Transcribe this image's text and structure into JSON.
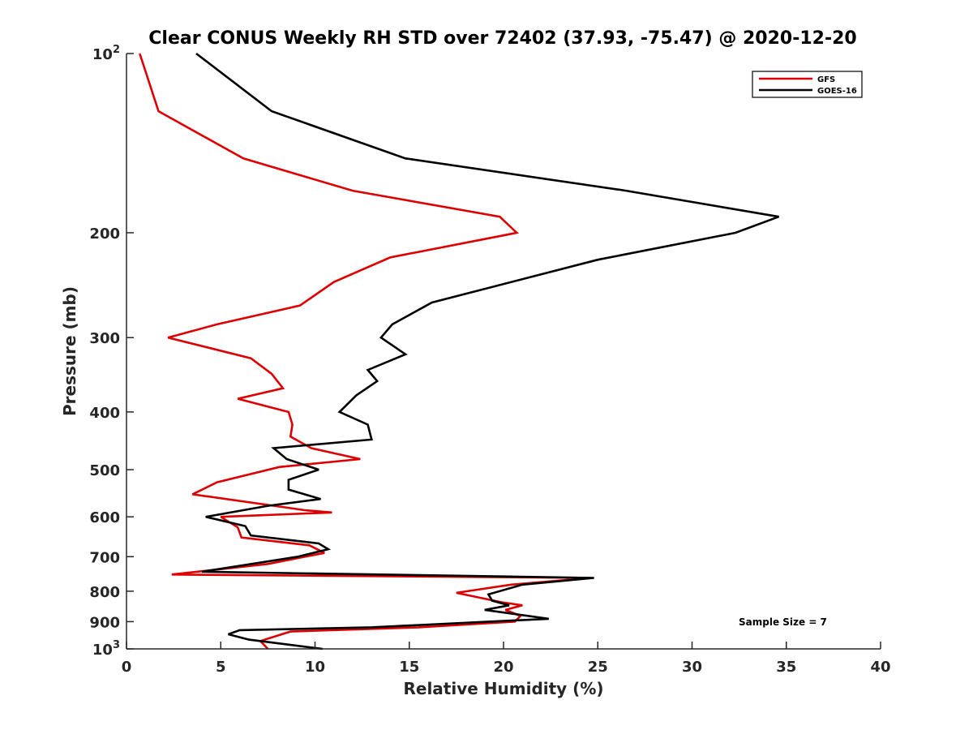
{
  "chart_data": {
    "type": "line",
    "title": "Clear CONUS Weekly RH STD over 72402 (37.93, -75.47) @ 2020-12-20",
    "xlabel": "Relative Humidity (%)",
    "ylabel": "Pressure (mb)",
    "xlim": [
      0,
      40
    ],
    "ylim": [
      100,
      1000
    ],
    "y_scale": "log",
    "y_reversed": true,
    "grid": false,
    "legend_position": "top-right",
    "x_ticks": [
      {
        "value": 0,
        "label": "0"
      },
      {
        "value": 5,
        "label": "5"
      },
      {
        "value": 10,
        "label": "10"
      },
      {
        "value": 15,
        "label": "15"
      },
      {
        "value": 20,
        "label": "20"
      },
      {
        "value": 25,
        "label": "25"
      },
      {
        "value": 30,
        "label": "30"
      },
      {
        "value": 35,
        "label": "35"
      },
      {
        "value": 40,
        "label": "40"
      }
    ],
    "y_ticks": [
      {
        "value": 100,
        "label": "10",
        "exp": "2"
      },
      {
        "value": 200,
        "label": "200"
      },
      {
        "value": 300,
        "label": "300"
      },
      {
        "value": 400,
        "label": "400"
      },
      {
        "value": 500,
        "label": "500"
      },
      {
        "value": 600,
        "label": "600"
      },
      {
        "value": 700,
        "label": "700"
      },
      {
        "value": 800,
        "label": "800"
      },
      {
        "value": 900,
        "label": "900"
      },
      {
        "value": 1000,
        "label": "10",
        "exp": "3"
      }
    ],
    "annotation": "Sample Size = 7",
    "series": [
      {
        "name": "GFS",
        "color": "#dd0000",
        "points": [
          {
            "x": 0.7,
            "y": 100
          },
          {
            "x": 1.7,
            "y": 125
          },
          {
            "x": 6.2,
            "y": 150
          },
          {
            "x": 12.0,
            "y": 170
          },
          {
            "x": 19.8,
            "y": 188
          },
          {
            "x": 20.7,
            "y": 200
          },
          {
            "x": 14.0,
            "y": 220
          },
          {
            "x": 11.0,
            "y": 242
          },
          {
            "x": 9.2,
            "y": 265
          },
          {
            "x": 4.8,
            "y": 285
          },
          {
            "x": 2.2,
            "y": 300
          },
          {
            "x": 6.6,
            "y": 325
          },
          {
            "x": 7.7,
            "y": 345
          },
          {
            "x": 8.3,
            "y": 365
          },
          {
            "x": 5.9,
            "y": 380
          },
          {
            "x": 8.6,
            "y": 400
          },
          {
            "x": 8.8,
            "y": 420
          },
          {
            "x": 8.7,
            "y": 440
          },
          {
            "x": 9.8,
            "y": 460
          },
          {
            "x": 12.4,
            "y": 480
          },
          {
            "x": 8.1,
            "y": 495
          },
          {
            "x": 4.8,
            "y": 525
          },
          {
            "x": 3.5,
            "y": 550
          },
          {
            "x": 9.5,
            "y": 585
          },
          {
            "x": 10.9,
            "y": 590
          },
          {
            "x": 5.0,
            "y": 600
          },
          {
            "x": 5.9,
            "y": 625
          },
          {
            "x": 6.1,
            "y": 650
          },
          {
            "x": 9.7,
            "y": 670
          },
          {
            "x": 10.5,
            "y": 690
          },
          {
            "x": 7.5,
            "y": 720
          },
          {
            "x": 2.4,
            "y": 750
          },
          {
            "x": 24.6,
            "y": 760
          },
          {
            "x": 20.4,
            "y": 780
          },
          {
            "x": 17.5,
            "y": 805
          },
          {
            "x": 19.9,
            "y": 835
          },
          {
            "x": 21.0,
            "y": 845
          },
          {
            "x": 20.1,
            "y": 860
          },
          {
            "x": 20.9,
            "y": 880
          },
          {
            "x": 20.6,
            "y": 900
          },
          {
            "x": 15.5,
            "y": 920
          },
          {
            "x": 8.7,
            "y": 935
          },
          {
            "x": 7.1,
            "y": 970
          },
          {
            "x": 7.5,
            "y": 1000
          }
        ]
      },
      {
        "name": "GOES-16",
        "color": "#000000",
        "points": [
          {
            "x": 3.7,
            "y": 100
          },
          {
            "x": 7.7,
            "y": 125
          },
          {
            "x": 14.8,
            "y": 150
          },
          {
            "x": 26.5,
            "y": 170
          },
          {
            "x": 34.6,
            "y": 188
          },
          {
            "x": 32.3,
            "y": 200
          },
          {
            "x": 25.0,
            "y": 222
          },
          {
            "x": 16.2,
            "y": 262
          },
          {
            "x": 14.1,
            "y": 285
          },
          {
            "x": 13.5,
            "y": 300
          },
          {
            "x": 14.8,
            "y": 320
          },
          {
            "x": 12.8,
            "y": 340
          },
          {
            "x": 13.3,
            "y": 355
          },
          {
            "x": 12.2,
            "y": 375
          },
          {
            "x": 11.3,
            "y": 400
          },
          {
            "x": 12.8,
            "y": 420
          },
          {
            "x": 13.0,
            "y": 445
          },
          {
            "x": 7.8,
            "y": 460
          },
          {
            "x": 8.5,
            "y": 480
          },
          {
            "x": 10.2,
            "y": 500
          },
          {
            "x": 8.6,
            "y": 520
          },
          {
            "x": 8.6,
            "y": 540
          },
          {
            "x": 10.3,
            "y": 560
          },
          {
            "x": 7.5,
            "y": 575
          },
          {
            "x": 4.2,
            "y": 600
          },
          {
            "x": 6.3,
            "y": 622
          },
          {
            "x": 6.6,
            "y": 645
          },
          {
            "x": 10.2,
            "y": 665
          },
          {
            "x": 10.7,
            "y": 680
          },
          {
            "x": 9.1,
            "y": 700
          },
          {
            "x": 4.0,
            "y": 742
          },
          {
            "x": 24.8,
            "y": 760
          },
          {
            "x": 21.0,
            "y": 780
          },
          {
            "x": 19.2,
            "y": 810
          },
          {
            "x": 19.4,
            "y": 830
          },
          {
            "x": 20.3,
            "y": 845
          },
          {
            "x": 19.0,
            "y": 860
          },
          {
            "x": 22.4,
            "y": 890
          },
          {
            "x": 13.0,
            "y": 920
          },
          {
            "x": 6.0,
            "y": 930
          },
          {
            "x": 5.4,
            "y": 945
          },
          {
            "x": 6.5,
            "y": 965
          },
          {
            "x": 10.4,
            "y": 1000
          }
        ]
      }
    ]
  }
}
